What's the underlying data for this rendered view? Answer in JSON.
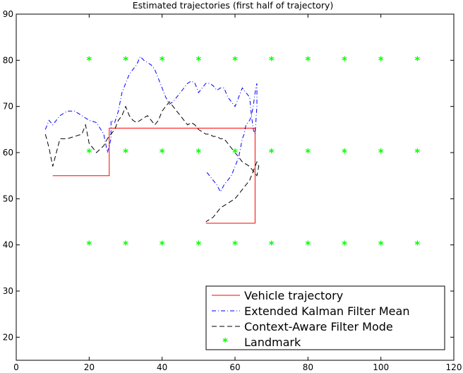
{
  "chart_data": {
    "type": "line",
    "title": "Estimated trajectories (first half of trajectory)",
    "xlabel": "",
    "ylabel": "",
    "xlim": [
      0,
      120
    ],
    "ylim": [
      15,
      90
    ],
    "xticks": [
      0,
      20,
      40,
      60,
      80,
      100,
      120
    ],
    "yticks": [
      20,
      30,
      40,
      50,
      60,
      70,
      80,
      90
    ],
    "grid": false,
    "legend_position": "bottom-right",
    "series": [
      {
        "name": "Vehicle trajectory",
        "color": "#ff0000",
        "style": "solid",
        "x": [
          10,
          25.5,
          25.5,
          65.5,
          65.5,
          52
        ],
        "y": [
          55,
          55,
          65.3,
          65.3,
          44.7,
          44.7
        ]
      },
      {
        "name": "Extended Kalman Filter Mean",
        "color": "#0000ff",
        "style": "dashdot",
        "x": [
          8,
          9,
          10,
          12,
          14,
          16,
          18,
          20,
          22,
          24,
          25,
          26,
          26,
          27,
          28,
          29,
          30,
          31,
          32,
          33,
          34,
          35,
          36,
          37,
          38,
          39,
          40,
          41,
          42,
          43,
          44,
          45,
          46,
          47,
          48,
          49,
          50,
          51,
          52,
          53,
          54,
          55,
          56,
          57,
          58,
          59,
          60,
          61,
          62,
          63,
          64,
          64.5,
          65,
          65.5,
          66,
          66,
          65.5,
          65,
          64.5,
          64,
          63,
          62.5,
          62,
          61.5,
          61,
          60.5,
          60,
          59.5,
          59,
          58,
          57,
          56,
          55,
          54,
          53,
          52.5,
          52
        ],
        "y": [
          65,
          67,
          66,
          68,
          69,
          69,
          68,
          67,
          66.5,
          64,
          60,
          63,
          67,
          66.5,
          69,
          73,
          75,
          77,
          78,
          79,
          80.8,
          80,
          79.5,
          79,
          78,
          76,
          74,
          72,
          70.5,
          71,
          72,
          73,
          74,
          75,
          75.5,
          75,
          73,
          74,
          75,
          75,
          74.5,
          73.5,
          74,
          74,
          72,
          71,
          70,
          72,
          74,
          73,
          72,
          68,
          65,
          64,
          70,
          75,
          73,
          70,
          68,
          67,
          66,
          64,
          63,
          61,
          59,
          58,
          57,
          56,
          55,
          54,
          53,
          51.5,
          53,
          54,
          55,
          55.5,
          56
        ]
      },
      {
        "name": "Context-Aware Filter Mode",
        "color": "#000000",
        "style": "dashed",
        "x": [
          8,
          9,
          10,
          12,
          14,
          16,
          18,
          19,
          20,
          22,
          24,
          25,
          26,
          27,
          28,
          29,
          30,
          31,
          32,
          33,
          34,
          35,
          36,
          37,
          38,
          39,
          40,
          41,
          42,
          43,
          44,
          45,
          46,
          47,
          48,
          49,
          50,
          51,
          52,
          53,
          54,
          55,
          56,
          57,
          58,
          59,
          60,
          61,
          62,
          63,
          64,
          65,
          66,
          66.5,
          66,
          65.5,
          65,
          64,
          63,
          62,
          61,
          60,
          59,
          58,
          57,
          56,
          55,
          54,
          53,
          52
        ],
        "y": [
          64,
          61,
          57,
          63,
          63,
          63.5,
          64,
          66,
          62,
          60,
          61.5,
          63,
          64,
          65,
          67,
          68,
          70,
          68,
          67,
          66.5,
          67,
          67.5,
          68,
          67,
          66,
          67,
          69,
          70,
          71,
          70,
          69,
          68,
          67,
          66,
          66.5,
          66,
          65,
          64.5,
          64,
          64,
          63.5,
          63.5,
          63,
          63,
          62,
          61,
          60,
          59,
          58,
          57.5,
          57,
          56,
          55,
          57,
          58,
          57,
          56,
          54,
          53,
          52,
          51,
          50,
          49.5,
          49,
          48.5,
          48,
          47,
          46,
          45.5,
          45
        ]
      }
    ],
    "landmarks": {
      "name": "Landmark",
      "color": "#00ff00",
      "marker": "*",
      "x": [
        20,
        30,
        40,
        50,
        60,
        70,
        80,
        90,
        100,
        110,
        20,
        30,
        40,
        50,
        60,
        70,
        80,
        90,
        100,
        110,
        20,
        30,
        40,
        50,
        60,
        70,
        80,
        90,
        100,
        110
      ],
      "y": [
        80,
        80,
        80,
        80,
        80,
        80,
        80,
        80,
        80,
        80,
        60,
        60,
        60,
        60,
        60,
        60,
        60,
        60,
        60,
        60,
        40,
        40,
        40,
        40,
        40,
        40,
        40,
        40,
        40,
        40
      ]
    }
  }
}
